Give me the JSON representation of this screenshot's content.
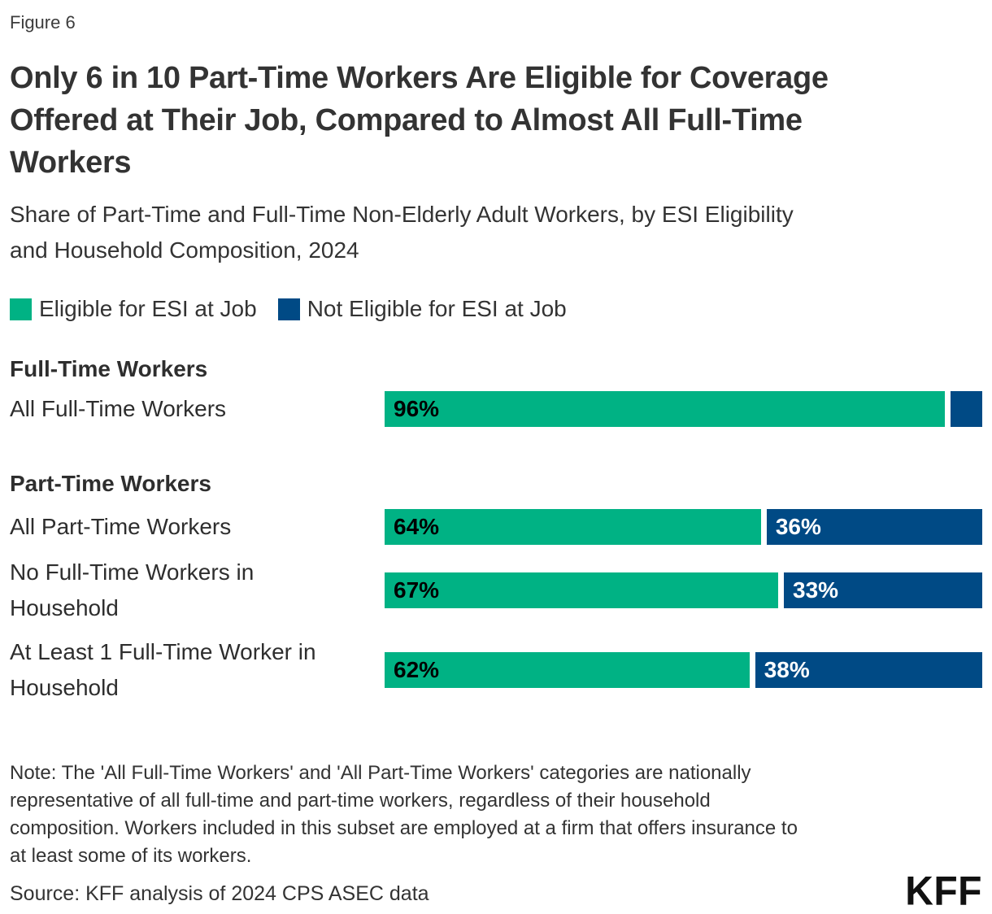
{
  "figure_label": "Figure 6",
  "title_lines": [
    "Only 6 in 10 Part-Time Workers Are Eligible for Coverage",
    "Offered at Their Job, Compared to Almost All Full-Time",
    "Workers"
  ],
  "subtitle_lines": [
    "Share of Part-Time and Full-Time Non-Elderly Adult Workers, by ESI Eligibility",
    "and Household Composition, 2024"
  ],
  "legend": {
    "eligible_label": "Eligible for ESI at Job",
    "not_eligible_label": "Not Eligible for ESI at Job"
  },
  "colors": {
    "eligible": "#00B284",
    "not_eligible": "#004A85",
    "text_dark": "#333333"
  },
  "chart_data": {
    "type": "bar",
    "orientation": "horizontal",
    "stacked": true,
    "unit": "percent",
    "x_range": [
      0,
      100
    ],
    "grid": false,
    "legend_position": "top",
    "series_names": [
      "Eligible for ESI at Job",
      "Not Eligible for ESI at Job"
    ],
    "sections": [
      {
        "header": "Full-Time Workers",
        "rows": [
          {
            "category": "All Full-Time Workers",
            "label_lines": [
              "All Full-Time Workers"
            ],
            "eligible": 96,
            "not_eligible": 4,
            "eligible_label": "96%",
            "not_eligible_label": ""
          }
        ]
      },
      {
        "header": "Part-Time Workers",
        "rows": [
          {
            "category": "All Part-Time Workers",
            "label_lines": [
              "All Part-Time Workers"
            ],
            "eligible": 64,
            "not_eligible": 36,
            "eligible_label": "64%",
            "not_eligible_label": "36%"
          },
          {
            "category": "No Full-Time Workers in Household",
            "label_lines": [
              "No Full-Time Workers in",
              "Household"
            ],
            "eligible": 67,
            "not_eligible": 33,
            "eligible_label": "67%",
            "not_eligible_label": "33%"
          },
          {
            "category": "At Least 1 Full-Time Worker in Household",
            "label_lines": [
              "At Least 1 Full-Time Worker in",
              "Household"
            ],
            "eligible": 62,
            "not_eligible": 38,
            "eligible_label": "62%",
            "not_eligible_label": "38%"
          }
        ]
      }
    ]
  },
  "note_lines": [
    "Note: The 'All Full-Time Workers' and 'All Part-Time Workers' categories are nationally",
    "representative of all full-time and part-time workers, regardless of their household",
    "composition. Workers included in this subset are employed at a firm that offers insurance to",
    "at least some of its workers."
  ],
  "source": "Source: KFF analysis of 2024 CPS ASEC data",
  "logo": "KFF"
}
